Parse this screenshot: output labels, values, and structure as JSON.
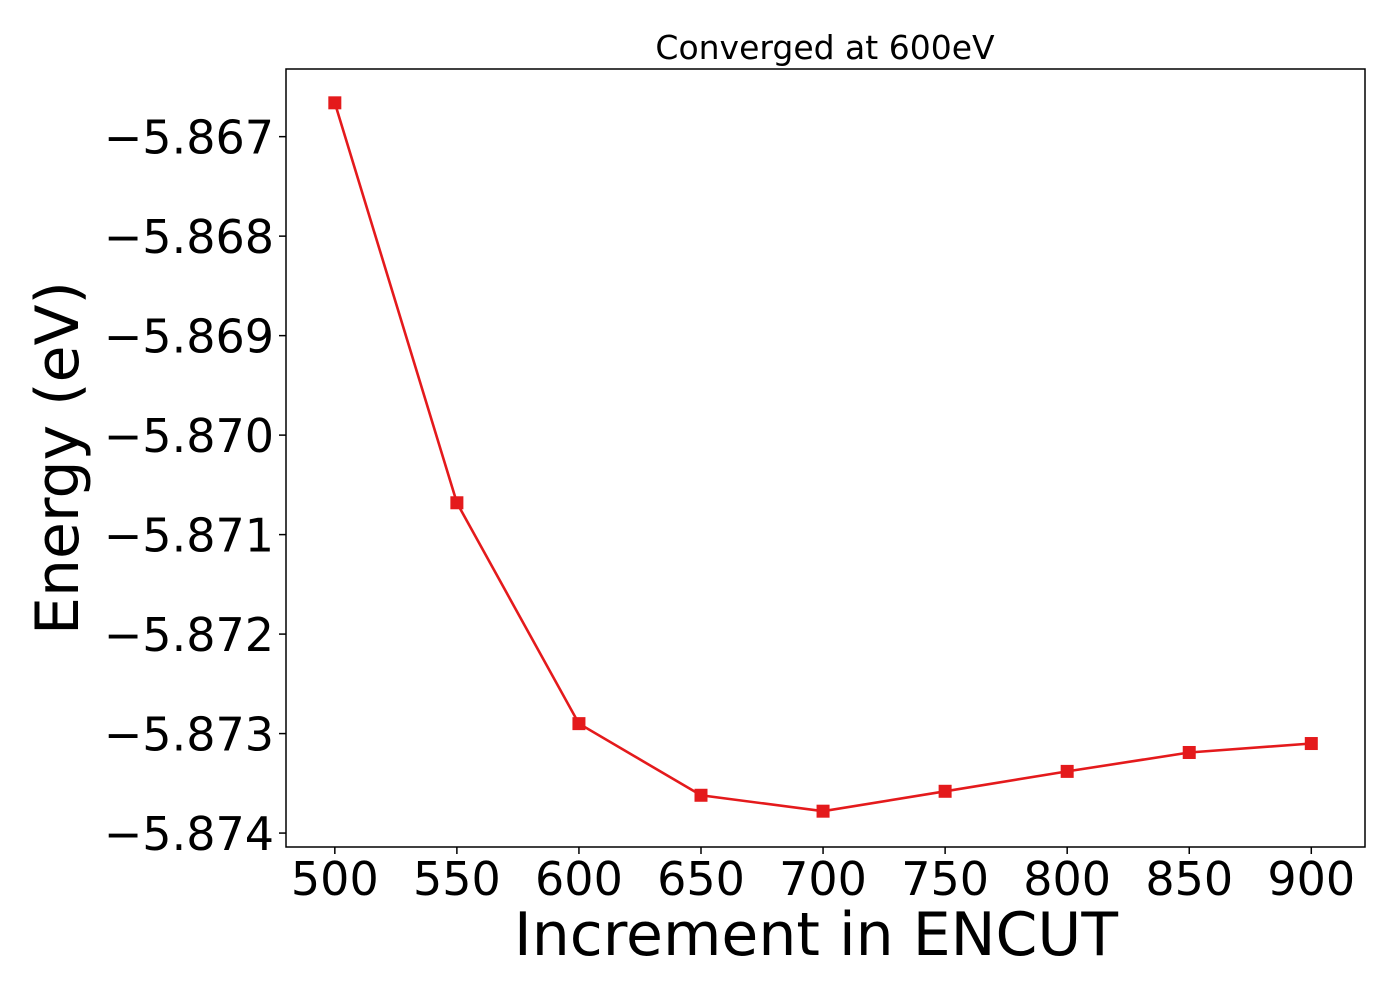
{
  "chart_data": {
    "type": "line",
    "title": "Converged at 600eV",
    "xlabel": "Increment in ENCUT",
    "ylabel": "Energy (eV)",
    "x": [
      500,
      550,
      600,
      650,
      700,
      750,
      800,
      850,
      900
    ],
    "series": [
      {
        "values": [
          -5.86666,
          -5.87068,
          -5.8729,
          -5.87362,
          -5.87378,
          -5.87358,
          -5.87338,
          -5.87319,
          -5.8731
        ],
        "color": "#e41a1c",
        "marker": "square"
      }
    ],
    "xticks": [
      "500",
      "550",
      "600",
      "650",
      "700",
      "750",
      "800",
      "850",
      "900"
    ],
    "yticks": [
      "−5.867",
      "−5.868",
      "−5.869",
      "−5.870",
      "−5.871",
      "−5.872",
      "−5.873",
      "−5.874"
    ],
    "ytick_values": [
      -5.867,
      -5.868,
      -5.869,
      -5.87,
      -5.871,
      -5.872,
      -5.873,
      -5.874
    ],
    "xlim": [
      480,
      922
    ],
    "ylim": [
      -5.87414,
      -5.86632
    ],
    "grid": false,
    "legend": "none"
  }
}
